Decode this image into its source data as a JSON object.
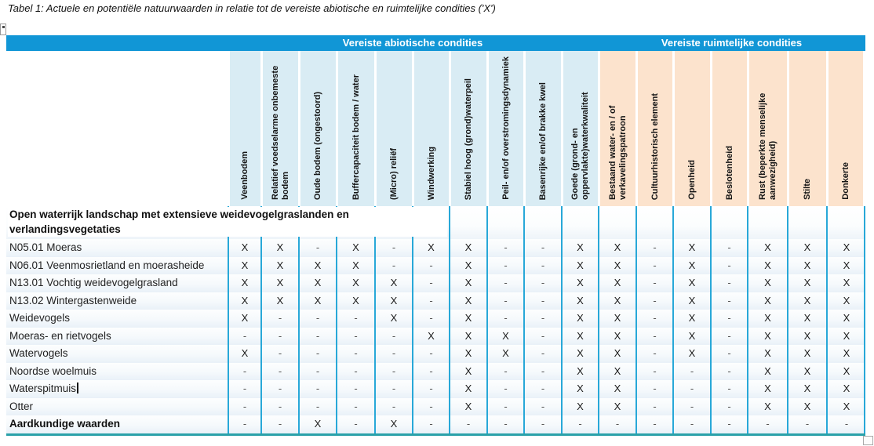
{
  "title": "Tabel 1: Actuele en potentiële natuurwaarden in relatie tot de vereiste abiotische en ruimtelijke condities ('X')",
  "marks": {
    "present": "X",
    "absent": "-"
  },
  "colors": {
    "band_blue": "#1196d6",
    "abiotic_header_cell": "#d9ecf4",
    "spatial_header_cell": "#fce3cd",
    "column_separator": "#28a8d8",
    "table_bottom_border": "#2aa1a9"
  },
  "table": {
    "group_headers": [
      {
        "label": "Vereiste abiotische condities",
        "columns": 10
      },
      {
        "label": "Vereiste ruimtelijke condities",
        "columns": 7
      }
    ],
    "columns": [
      {
        "label": "Veenbodem",
        "group": "abiotisch"
      },
      {
        "label": "Relatief voedselarme onbemeste bodem",
        "group": "abiotisch"
      },
      {
        "label": "Oude bodem (ongestoord)",
        "group": "abiotisch"
      },
      {
        "label": "Buffercapaciteit bodem / water",
        "group": "abiotisch"
      },
      {
        "label": "(Micro) reliëf",
        "group": "abiotisch"
      },
      {
        "label": "Windwerking",
        "group": "abiotisch"
      },
      {
        "label": "Stabiel hoog (grond)waterpeil",
        "group": "abiotisch"
      },
      {
        "label": "Peil- en/of overstromingsdynamiek",
        "group": "abiotisch"
      },
      {
        "label": "Basenrijke en/of brakke kwel",
        "group": "abiotisch"
      },
      {
        "label": "Goede (grond- en oppervlakte)waterkwaliteit",
        "group": "abiotisch"
      },
      {
        "label": "Bestaand water- en / of verkavelingspatroon",
        "group": "ruimtelijk"
      },
      {
        "label": "Cultuurhistorisch element",
        "group": "ruimtelijk"
      },
      {
        "label": "Openheid",
        "group": "ruimtelijk"
      },
      {
        "label": "Beslotenheid",
        "group": "ruimtelijk"
      },
      {
        "label": "Rust (beperkte menselijke aanwezigheid)",
        "group": "ruimtelijk"
      },
      {
        "label": "Stilte",
        "group": "ruimtelijk"
      },
      {
        "label": "Donkerte",
        "group": "ruimtelijk"
      }
    ],
    "section_header": "Open waterrijk landschap met extensieve weidevogelgraslanden en verlandingsvegetaties",
    "rows": [
      {
        "label": "N05.01 Moeras",
        "bold": false,
        "cursor": false,
        "values": [
          "X",
          "X",
          "-",
          "X",
          "-",
          "X",
          "X",
          "-",
          "-",
          "X",
          "X",
          "-",
          "X",
          "-",
          "X",
          "X",
          "X"
        ]
      },
      {
        "label": "N06.01 Veenmosrietland en moerasheide",
        "bold": false,
        "cursor": false,
        "values": [
          "X",
          "X",
          "X",
          "X",
          "-",
          "-",
          "X",
          "-",
          "-",
          "X",
          "X",
          "-",
          "X",
          "-",
          "X",
          "X",
          "X"
        ]
      },
      {
        "label": "N13.01 Vochtig weidevogelgrasland",
        "bold": false,
        "cursor": false,
        "values": [
          "X",
          "X",
          "X",
          "X",
          "X",
          "-",
          "X",
          "-",
          "-",
          "X",
          "X",
          "-",
          "X",
          "-",
          "X",
          "X",
          "X"
        ]
      },
      {
        "label": "N13.02 Wintergastenweide",
        "bold": false,
        "cursor": false,
        "values": [
          "X",
          "X",
          "X",
          "X",
          "X",
          "-",
          "X",
          "-",
          "-",
          "X",
          "X",
          "-",
          "X",
          "-",
          "X",
          "X",
          "X"
        ]
      },
      {
        "label": "Weidevogels",
        "bold": false,
        "cursor": false,
        "values": [
          "X",
          "-",
          "-",
          "-",
          "X",
          "-",
          "X",
          "-",
          "-",
          "X",
          "X",
          "-",
          "X",
          "-",
          "X",
          "X",
          "X"
        ]
      },
      {
        "label": "Moeras- en rietvogels",
        "bold": false,
        "cursor": false,
        "values": [
          "-",
          "-",
          "-",
          "-",
          "-",
          "X",
          "X",
          "X",
          "-",
          "X",
          "X",
          "-",
          "X",
          "-",
          "X",
          "X",
          "X"
        ]
      },
      {
        "label": "Watervogels",
        "bold": false,
        "cursor": false,
        "values": [
          "X",
          "-",
          "-",
          "-",
          "-",
          "-",
          "X",
          "X",
          "-",
          "X",
          "X",
          "-",
          "X",
          "-",
          "X",
          "X",
          "X"
        ]
      },
      {
        "label": "Noordse woelmuis",
        "bold": false,
        "cursor": false,
        "values": [
          "-",
          "-",
          "-",
          "-",
          "-",
          "-",
          "X",
          "-",
          "-",
          "X",
          "X",
          "-",
          "-",
          "-",
          "X",
          "X",
          "X"
        ]
      },
      {
        "label": "Waterspitmuis",
        "bold": false,
        "cursor": true,
        "values": [
          "-",
          "-",
          "-",
          "-",
          "-",
          "-",
          "X",
          "-",
          "-",
          "X",
          "X",
          "-",
          "-",
          "-",
          "X",
          "X",
          "X"
        ]
      },
      {
        "label": "Otter",
        "bold": false,
        "cursor": false,
        "values": [
          "-",
          "-",
          "-",
          "-",
          "-",
          "-",
          "X",
          "-",
          "-",
          "X",
          "X",
          "-",
          "-",
          "-",
          "X",
          "X",
          "X"
        ]
      },
      {
        "label": "Aardkundige waarden",
        "bold": true,
        "cursor": false,
        "values": [
          "-",
          "-",
          "X",
          "-",
          "X",
          "-",
          "-",
          "-",
          "-",
          "-",
          "-",
          "-",
          "-",
          "-",
          "-",
          "-",
          "-"
        ]
      }
    ]
  }
}
